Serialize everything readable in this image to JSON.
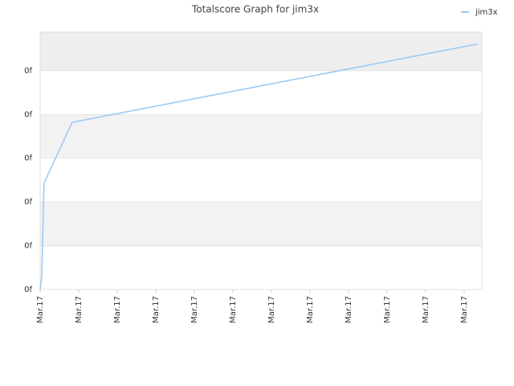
{
  "chart_data": {
    "type": "line",
    "title": "Totalscore Graph for jim3x",
    "x": [
      0,
      0.04,
      0.1,
      0.83,
      11.35
    ],
    "series": [
      {
        "name": "jim3x",
        "color": "#99c8f2",
        "values": [
          0,
          0.28,
          2.43,
          3.82,
          5.61
        ]
      }
    ],
    "xlim": [
      0,
      11.46
    ],
    "xticks": [
      {
        "value": 0,
        "label": "Mar.17"
      },
      {
        "value": 1,
        "label": "Mar.17"
      },
      {
        "value": 2,
        "label": "Mar.17"
      },
      {
        "value": 3,
        "label": "Mar.17"
      },
      {
        "value": 4,
        "label": "Mar.17"
      },
      {
        "value": 5,
        "label": "Mar.17"
      },
      {
        "value": 6,
        "label": "Mar.17"
      },
      {
        "value": 7,
        "label": "Mar.17"
      },
      {
        "value": 8,
        "label": "Mar.17"
      },
      {
        "value": 9,
        "label": "Mar.17"
      },
      {
        "value": 10,
        "label": "Mar.17"
      },
      {
        "value": 11,
        "label": "Mar.17"
      }
    ],
    "ylim": [
      0,
      5.88
    ],
    "yticks": [
      {
        "value": 0,
        "label": "0f"
      },
      {
        "value": 1,
        "label": "0f"
      },
      {
        "value": 2,
        "label": "0f"
      },
      {
        "value": 3,
        "label": "0f"
      },
      {
        "value": 4,
        "label": "0f"
      },
      {
        "value": 5,
        "label": "0f"
      }
    ],
    "legend": "top-right",
    "grid": true
  }
}
